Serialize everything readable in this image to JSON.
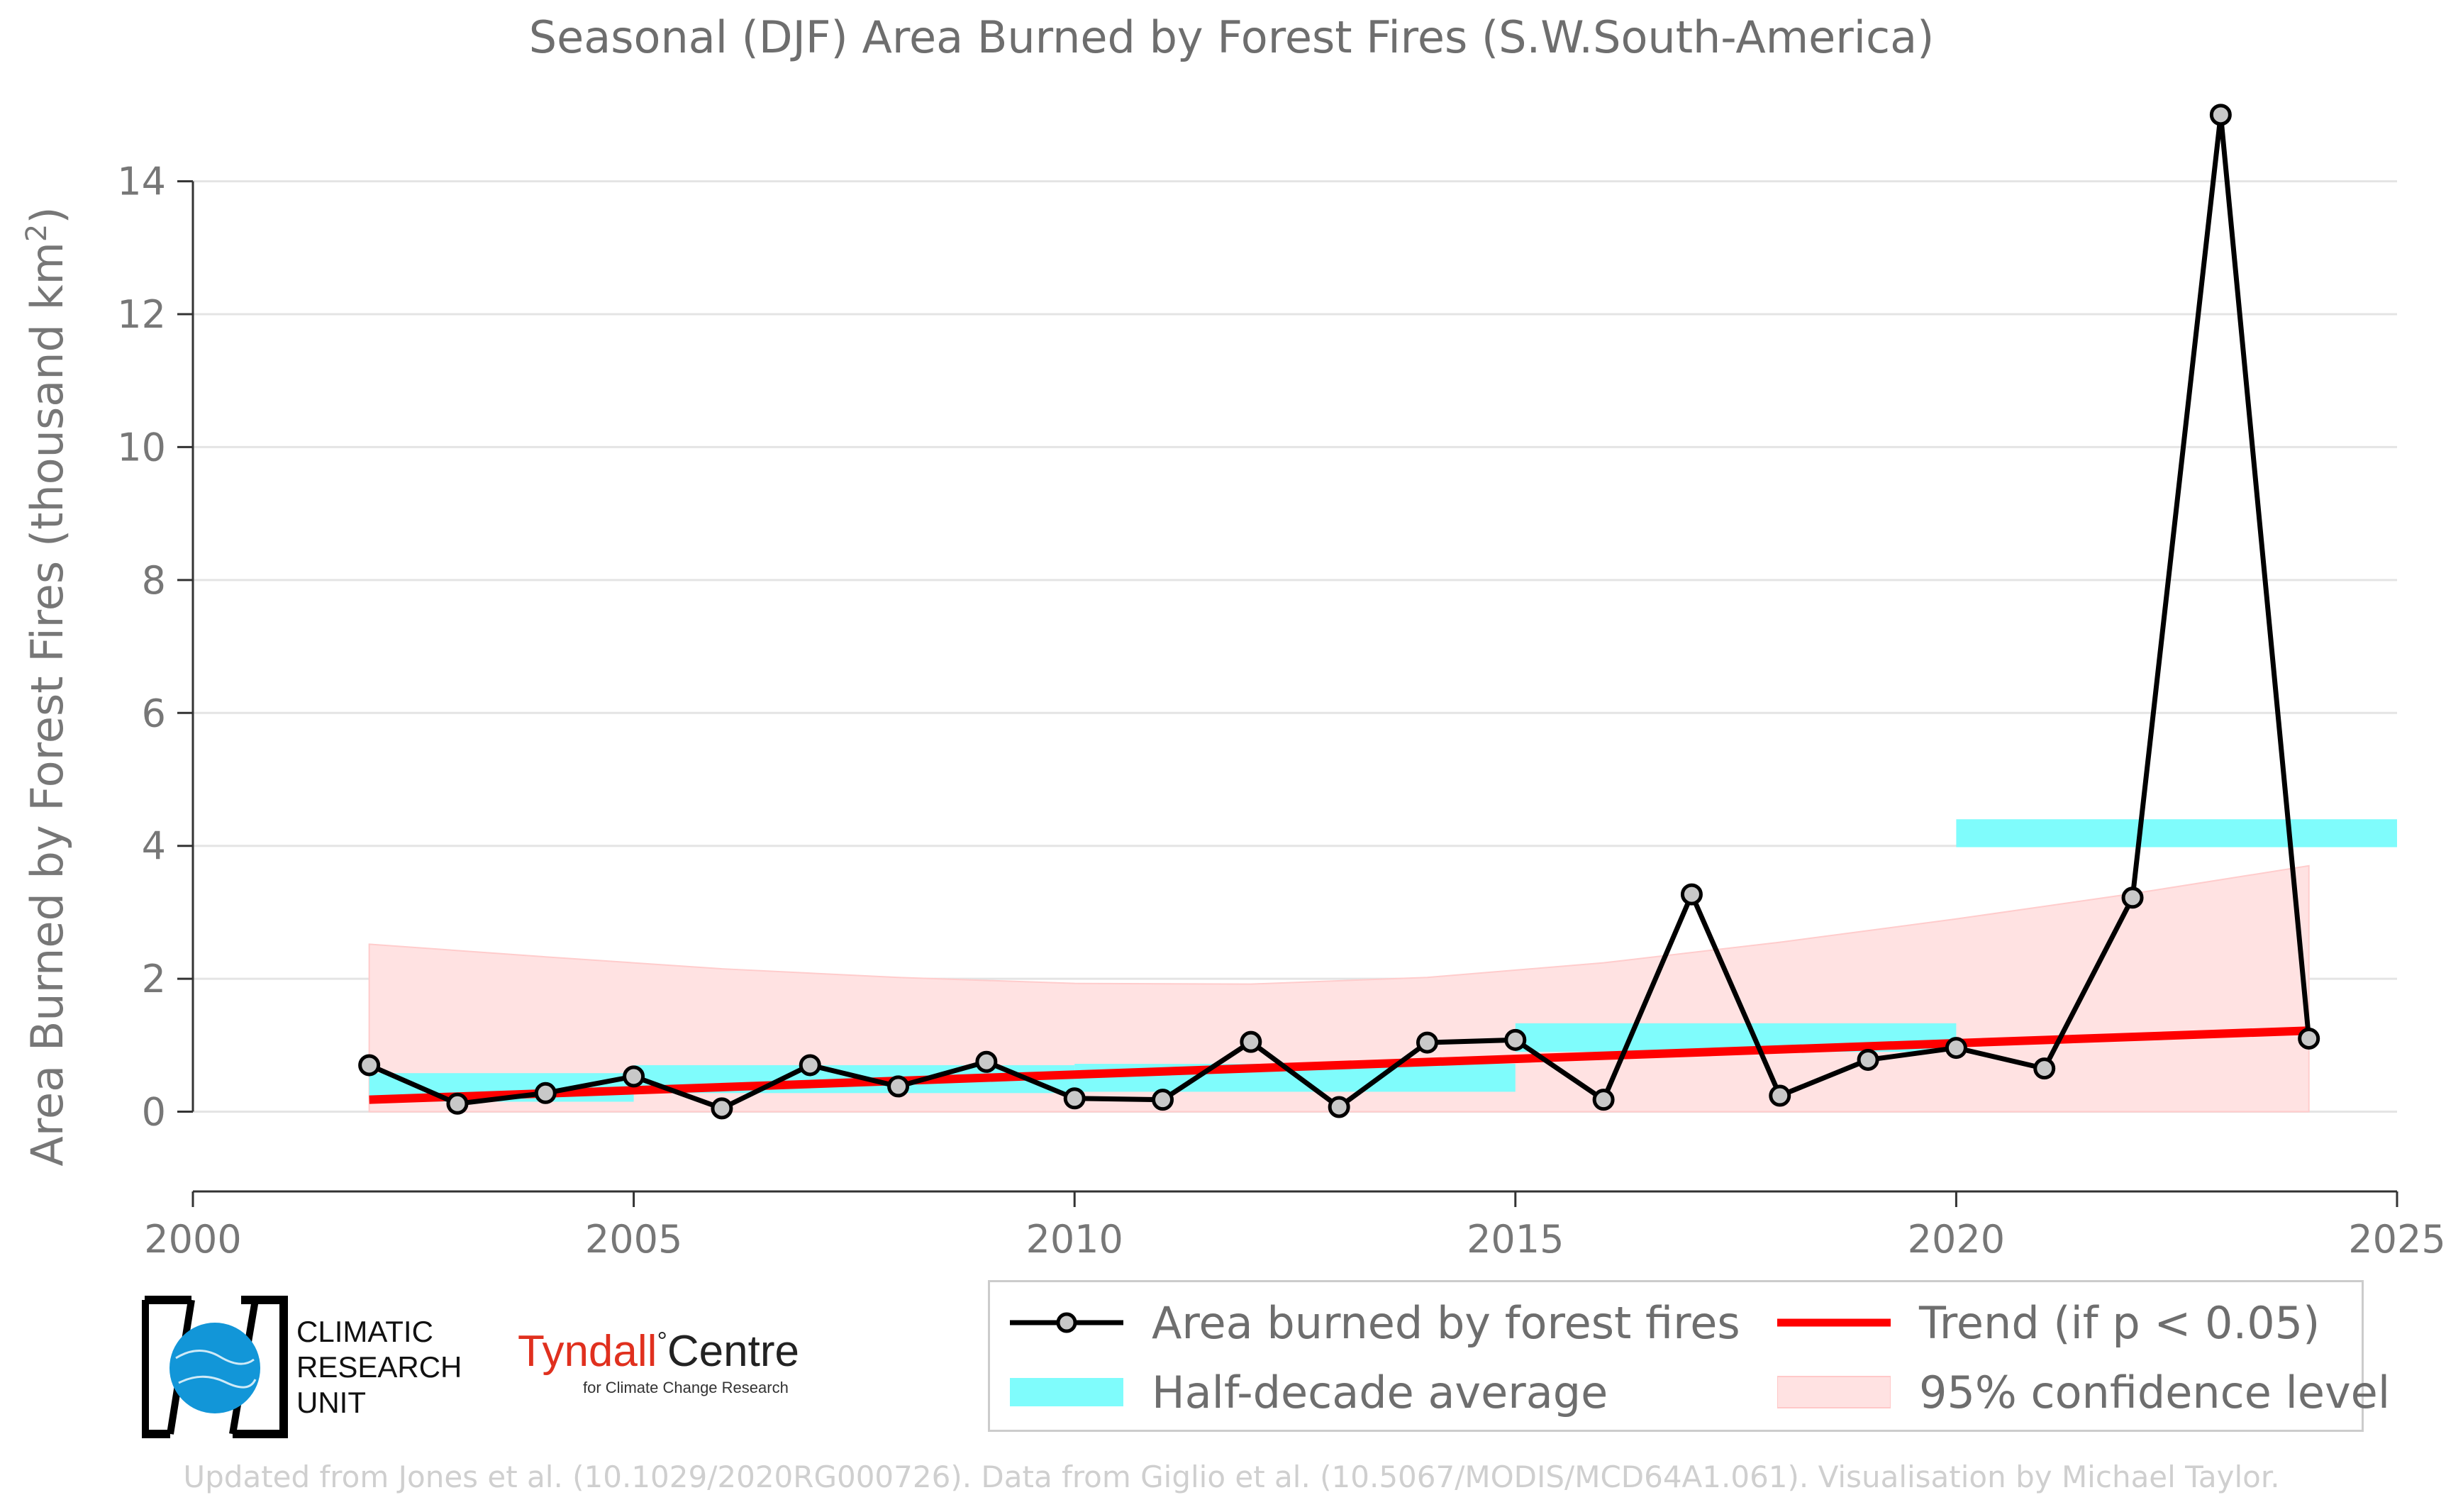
{
  "chart_data": {
    "type": "line",
    "title": "Seasonal (DJF) Area Burned by Forest Fires (S.W.South-America)",
    "ylabel_prefix": "Area Burned by Forest Fires (thousand km",
    "ylabel_sup": "2",
    "ylabel_suffix": ")",
    "xlabel": "",
    "xlim": [
      2000,
      2025
    ],
    "ylim": [
      -1.2,
      15.5
    ],
    "x_ticks": [
      "2000",
      "2005",
      "2010",
      "2015",
      "2020",
      "2025"
    ],
    "x_tick_values": [
      2000,
      2005,
      2010,
      2015,
      2020,
      2025
    ],
    "y_ticks": [
      "0",
      "2",
      "4",
      "6",
      "8",
      "10",
      "12",
      "14"
    ],
    "y_tick_values": [
      0,
      2,
      4,
      6,
      8,
      10,
      12,
      14
    ],
    "grid": "horizontal",
    "series": [
      {
        "name": "Area burned by forest fires",
        "color": "#000000",
        "x": [
          2002,
          2003,
          2004,
          2005,
          2006,
          2007,
          2008,
          2009,
          2010,
          2011,
          2012,
          2013,
          2014,
          2015,
          2016,
          2017,
          2018,
          2019,
          2020,
          2021,
          2022,
          2023,
          2024
        ],
        "y": [
          0.7,
          0.12,
          0.28,
          0.53,
          0.05,
          0.7,
          0.38,
          0.75,
          0.2,
          0.18,
          1.05,
          0.07,
          1.04,
          1.08,
          0.18,
          3.27,
          0.24,
          0.78,
          0.96,
          0.65,
          3.22,
          15.0,
          1.1
        ]
      }
    ],
    "half_decade_average": {
      "name": "Half-decade average",
      "color": "#7ffcfc",
      "segments": [
        {
          "x0": 2002,
          "x1": 2005,
          "y0": 0.15,
          "y1": 0.58
        },
        {
          "x0": 2005,
          "x1": 2010,
          "y0": 0.28,
          "y1": 0.7
        },
        {
          "x0": 2010,
          "x1": 2015,
          "y0": 0.3,
          "y1": 0.72
        },
        {
          "x0": 2015,
          "x1": 2020,
          "y0": 0.9,
          "y1": 1.33
        },
        {
          "x0": 2020,
          "x1": 2025,
          "y0": 3.98,
          "y1": 4.4
        }
      ]
    },
    "trend": {
      "name": "Trend (if p < 0.05)",
      "color": "#ff0000",
      "x": [
        2002,
        2024
      ],
      "y": [
        0.18,
        1.22
      ]
    },
    "confidence": {
      "name": "95% confidence level",
      "color": "#ffe2e2",
      "x": [
        2002,
        2004,
        2006,
        2008,
        2010,
        2012,
        2014,
        2016,
        2018,
        2020,
        2022,
        2024
      ],
      "upper": [
        2.52,
        2.33,
        2.15,
        2.02,
        1.93,
        1.92,
        2.02,
        2.24,
        2.55,
        2.9,
        3.28,
        3.7
      ],
      "lower": [
        0,
        0,
        0,
        0,
        0,
        0,
        0,
        0,
        0,
        0,
        0,
        0
      ]
    },
    "legend_position": "bottom-right"
  },
  "legend": {
    "items": [
      {
        "label": "Area burned by forest fires"
      },
      {
        "label": "Trend (if p < 0.05)"
      },
      {
        "label": "Half-decade average"
      },
      {
        "label": "95% confidence level"
      }
    ]
  },
  "logos": {
    "cru_lines": [
      "CLIMATIC",
      "RESEARCH",
      "UNIT"
    ],
    "tyndall_name": "Tyndall",
    "tyndall_degree": "°",
    "tyndall_centre": "Centre",
    "tyndall_sub": "for Climate Change Research"
  },
  "footer": "Updated from Jones et al. (10.1029/2020RG000726). Data from Giglio et al. (10.5067/MODIS/MCD64A1.061). Visualisation by Michael Taylor."
}
